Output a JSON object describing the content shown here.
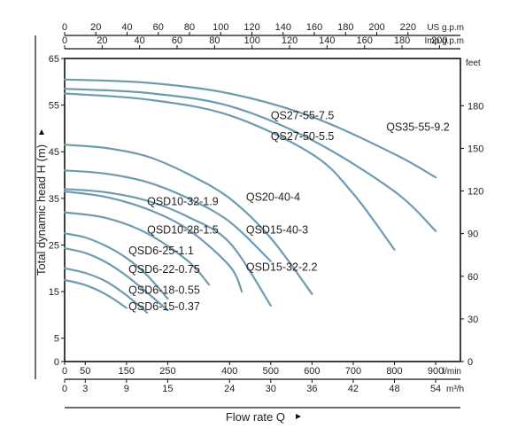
{
  "chart_data": {
    "type": "line",
    "title": "",
    "xlabel": "Flow rate Q",
    "ylabel": "Total dynamic head H (m)",
    "xlim": [
      0,
      960
    ],
    "ylim": [
      0,
      65
    ],
    "grid": false,
    "legend": "curve labels placed next to each curve",
    "x_unit": "l/min",
    "y_unit": "m",
    "x_ticks": [
      0,
      50,
      150,
      250,
      400,
      500,
      600,
      700,
      800,
      900
    ],
    "y_ticks": [
      0,
      5,
      15,
      25,
      35,
      45,
      55,
      65
    ],
    "axes": {
      "us_gpm": {
        "unit": "US g.p.m",
        "ticks": [
          "0",
          "20",
          "40",
          "60",
          "80",
          "100",
          "120",
          "140",
          "160",
          "180",
          "200",
          "220"
        ],
        "values": [
          0,
          20,
          40,
          60,
          80,
          100,
          120,
          140,
          160,
          180,
          200,
          220
        ]
      },
      "imp_gpm": {
        "unit": "Imp g.p.m",
        "ticks": [
          "0",
          "20",
          "40",
          "60",
          "80",
          "100",
          "120",
          "140",
          "160",
          "180",
          "200"
        ],
        "values": [
          0,
          20,
          40,
          60,
          80,
          100,
          120,
          140,
          160,
          180,
          200
        ]
      },
      "m3h": {
        "unit": "m³/h",
        "ticks": [
          "0",
          "3",
          "9",
          "15",
          "24",
          "30",
          "36",
          "42",
          "48",
          "54"
        ],
        "values": [
          0,
          3,
          9,
          15,
          24,
          30,
          36,
          42,
          48,
          54
        ]
      },
      "feet": {
        "unit": "feet",
        "ticks": [
          "0",
          "30",
          "60",
          "90",
          "120",
          "150",
          "180"
        ],
        "values": [
          0,
          30,
          60,
          90,
          120,
          150,
          180
        ]
      }
    },
    "series": [
      {
        "name": "QS35-55-9.2",
        "x": [
          0,
          200,
          400,
          600,
          800,
          900
        ],
        "y": [
          60.5,
          59.8,
          57.5,
          52.5,
          44.5,
          39.5
        ],
        "label_at": [
          780,
          49.5
        ]
      },
      {
        "name": "QS27-55-7.5",
        "x": [
          0,
          200,
          400,
          600,
          800,
          900
        ],
        "y": [
          58.5,
          57.6,
          54.8,
          47.5,
          36.5,
          28
        ],
        "label_at": [
          500,
          52
        ]
      },
      {
        "name": "QS27-50-5.5",
        "x": [
          0,
          200,
          400,
          600,
          700,
          800
        ],
        "y": [
          57.5,
          56.2,
          52.8,
          44.5,
          36,
          24
        ],
        "label_at": [
          500,
          47.5
        ]
      },
      {
        "name": "QS20-40-4",
        "x": [
          0,
          100,
          200,
          300,
          400,
          500,
          600
        ],
        "y": [
          46.5,
          45.8,
          44,
          40.2,
          35,
          26.5,
          14.5
        ],
        "label_at": [
          440,
          34.5
        ]
      },
      {
        "name": "QSD15-40-3",
        "x": [
          0,
          100,
          200,
          300,
          400,
          500
        ],
        "y": [
          41,
          40.3,
          38.5,
          35,
          30,
          21.5
        ],
        "label_at": [
          440,
          27.5
        ]
      },
      {
        "name": "QSD15-32-2.2",
        "x": [
          0,
          100,
          200,
          300,
          400,
          500
        ],
        "y": [
          37,
          36.3,
          34.5,
          31,
          25.5,
          12
        ],
        "label_at": [
          440,
          19.5
        ]
      },
      {
        "name": "QSD10-32-1.9",
        "x": [
          0,
          100,
          200,
          300,
          400,
          430
        ],
        "y": [
          36.5,
          35.3,
          32.7,
          28.3,
          20.5,
          15
        ],
        "label_at": [
          200,
          33.5
        ]
      },
      {
        "name": "QSD10-28-1.5",
        "x": [
          0,
          100,
          200,
          300,
          350
        ],
        "y": [
          32,
          30.8,
          27.5,
          21.5,
          16.5
        ],
        "label_at": [
          200,
          27.5
        ]
      },
      {
        "name": "QSD6-25-1.1",
        "x": [
          0,
          50,
          100,
          150,
          200,
          250
        ],
        "y": [
          27.5,
          26.6,
          24.8,
          22.2,
          18.5,
          13.5
        ],
        "label_at": [
          155,
          23
        ]
      },
      {
        "name": "QSD6-22-0.75",
        "x": [
          0,
          50,
          100,
          150,
          200,
          250
        ],
        "y": [
          24.3,
          23.3,
          21.3,
          18.4,
          14.8,
          11
        ],
        "label_at": [
          155,
          19
        ]
      },
      {
        "name": "QSD6-18-0.55",
        "x": [
          0,
          50,
          100,
          150,
          200
        ],
        "y": [
          20,
          19,
          17.2,
          14.2,
          10.5
        ],
        "label_at": [
          155,
          14.5
        ]
      },
      {
        "name": "QSD6-15-0.37",
        "x": [
          0,
          50,
          100,
          150
        ],
        "y": [
          17.5,
          16.4,
          14.4,
          11.5
        ],
        "label_at": [
          155,
          11
        ]
      }
    ]
  }
}
